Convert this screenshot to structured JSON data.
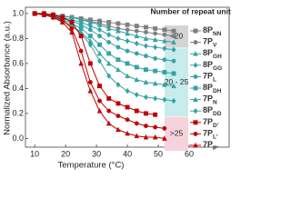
{
  "chart_data": {
    "type": "line",
    "x_label": "Temperature (°C)",
    "y_label": "Normalized Absorbance (a.u.)",
    "legend_title": "Number of repeat units",
    "xlim": [
      7,
      70
    ],
    "xticks": [
      10,
      20,
      30,
      40,
      50,
      60
    ],
    "ylim": [
      -0.07,
      1.05
    ],
    "yticks": [
      {
        "value": 0,
        "label": "0.0"
      },
      0.2,
      0.4,
      0.6,
      0.8,
      {
        "value": 1,
        "label": "1.0"
      }
    ],
    "groups": [
      {
        "label": "<20",
        "color": "#d4d4d4"
      },
      {
        "label": "20 - 25",
        "color": "#c8ecec"
      },
      {
        "label": ">25",
        "color": "#f6d3dc"
      }
    ],
    "x": [
      10,
      13,
      16,
      19,
      22,
      25,
      28,
      31,
      34,
      37,
      40,
      43,
      46,
      49,
      52,
      55
    ],
    "series": [
      {
        "name": "8P",
        "sub": "NN",
        "color": "#7f7f7f",
        "marker": "square",
        "group": 0,
        "values": [
          1.0,
          1.0,
          0.99,
          0.98,
          0.97,
          0.96,
          0.95,
          0.94,
          0.93,
          0.92,
          0.91,
          0.9,
          0.89,
          0.88,
          0.87,
          0.86
        ]
      },
      {
        "name": "7P",
        "sub": "V",
        "color": "#7f7f7f",
        "marker": "circle",
        "group": 0,
        "values": [
          1.0,
          1.0,
          0.99,
          0.98,
          0.97,
          0.95,
          0.94,
          0.92,
          0.9,
          0.88,
          0.87,
          0.86,
          0.85,
          0.84,
          0.83,
          0.82
        ]
      },
      {
        "name": "8P",
        "sub": "GH",
        "color": "#35a3a5",
        "marker": "triangle",
        "group": 1,
        "values": [
          1.0,
          1.0,
          0.99,
          0.98,
          0.97,
          0.95,
          0.93,
          0.91,
          0.88,
          0.86,
          0.84,
          0.82,
          0.8,
          0.79,
          0.78,
          0.77
        ]
      },
      {
        "name": "8P",
        "sub": "GG",
        "color": "#35a3a5",
        "marker": "diamond",
        "group": 1,
        "values": [
          1.0,
          0.99,
          0.98,
          0.97,
          0.95,
          0.93,
          0.9,
          0.87,
          0.83,
          0.8,
          0.78,
          0.76,
          0.74,
          0.73,
          0.72,
          0.71
        ]
      },
      {
        "name": "7P",
        "sub": "L",
        "color": "#35a3a5",
        "marker": "circle",
        "group": 1,
        "values": [
          1.0,
          0.99,
          0.98,
          0.96,
          0.94,
          0.91,
          0.87,
          0.82,
          0.77,
          0.73,
          0.7,
          0.68,
          0.66,
          0.64,
          0.63,
          0.62
        ]
      },
      {
        "name": "8P",
        "sub": "DH",
        "color": "#35a3a5",
        "marker": "square",
        "group": 1,
        "values": [
          1.0,
          0.99,
          0.97,
          0.95,
          0.92,
          0.88,
          0.82,
          0.75,
          0.68,
          0.63,
          0.6,
          0.57,
          0.55,
          0.54,
          0.53,
          0.52
        ]
      },
      {
        "name": "7P",
        "sub": "N",
        "color": "#35a3a5",
        "marker": "triangle",
        "group": 1,
        "values": [
          1.0,
          0.99,
          0.97,
          0.94,
          0.9,
          0.85,
          0.78,
          0.68,
          0.6,
          0.55,
          0.5,
          0.47,
          0.45,
          0.44,
          0.43,
          0.42
        ]
      },
      {
        "name": "8P",
        "sub": "DD",
        "color": "#35a3a5",
        "marker": "diamond",
        "group": 1,
        "values": [
          1.0,
          0.99,
          0.97,
          0.94,
          0.9,
          0.84,
          0.75,
          0.62,
          0.5,
          0.43,
          0.38,
          0.35,
          0.33,
          0.32,
          0.31,
          0.3
        ]
      },
      {
        "name": "7P",
        "sub": "D'",
        "color": "#c00000",
        "marker": "square",
        "group": 2,
        "values": [
          1.0,
          1.0,
          0.99,
          0.97,
          0.93,
          0.82,
          0.6,
          0.42,
          0.32,
          0.28,
          0.25,
          0.22,
          0.2,
          0.19,
          null,
          null
        ]
      },
      {
        "name": "7P",
        "sub": "L'",
        "color": "#c00000",
        "marker": "circle",
        "group": 2,
        "values": [
          1.0,
          0.99,
          0.98,
          0.95,
          0.88,
          0.7,
          0.45,
          0.3,
          0.22,
          0.18,
          0.15,
          0.12,
          0.1,
          0.09,
          0.08,
          null
        ]
      },
      {
        "name": "7P",
        "sub": "P'",
        "color": "#c00000",
        "marker": "triangle",
        "group": 2,
        "values": [
          1.0,
          0.99,
          0.97,
          0.93,
          0.85,
          0.6,
          0.38,
          0.22,
          0.12,
          0.07,
          0.04,
          0.02,
          0.01,
          0.01,
          0.0,
          null
        ]
      }
    ]
  }
}
